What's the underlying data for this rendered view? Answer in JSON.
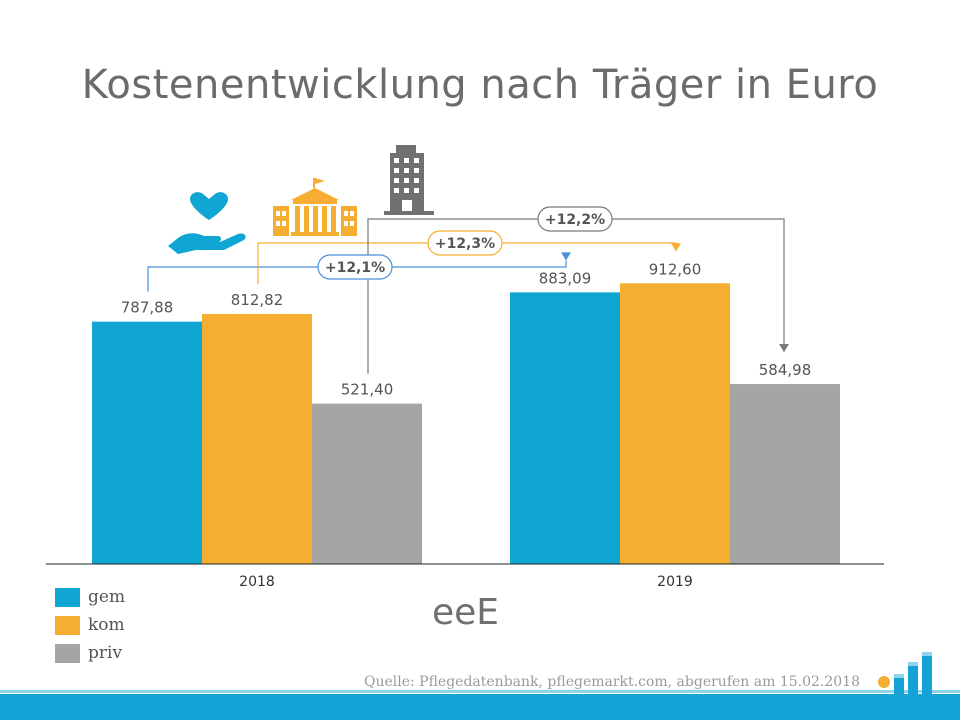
{
  "chart_data": {
    "type": "bar",
    "title": "Kostenentwicklung nach Träger in Euro",
    "categories": [
      "2018",
      "2019"
    ],
    "series": [
      {
        "name": "gem",
        "values": [
          787.88,
          883.09
        ],
        "labels": [
          "787,88",
          "883,09"
        ],
        "color": "#0fa6d3"
      },
      {
        "name": "kom",
        "values": [
          812.82,
          912.6
        ],
        "labels": [
          "812,82",
          "912,60"
        ],
        "color": "#f5ae31"
      },
      {
        "name": "priv",
        "values": [
          521.4,
          584.98
        ],
        "labels": [
          "521,40",
          "584,98"
        ],
        "color": "#a5a5a5"
      }
    ],
    "ylim": [
      0,
      1000
    ],
    "xlabel": "",
    "ylabel": "",
    "annotations": [
      {
        "series": "gem",
        "text": "+12,1%",
        "color": "#4a90d9"
      },
      {
        "series": "kom",
        "text": "+12,3%",
        "color": "#f5ae31"
      },
      {
        "series": "priv",
        "text": "+12,2%",
        "color": "#7a7a7a"
      }
    ],
    "legend_position": "bottom-left"
  },
  "icons": [
    "heart-hand-icon",
    "institution-building-icon",
    "office-tower-icon"
  ],
  "watermark": "eeE",
  "source": "Quelle: Pflegedatenbank, pflegemarkt.com, abgerufen am 15.02.2018",
  "colors": {
    "footer_band": "#15a3d6",
    "logo_dot": "#f5ae31"
  }
}
